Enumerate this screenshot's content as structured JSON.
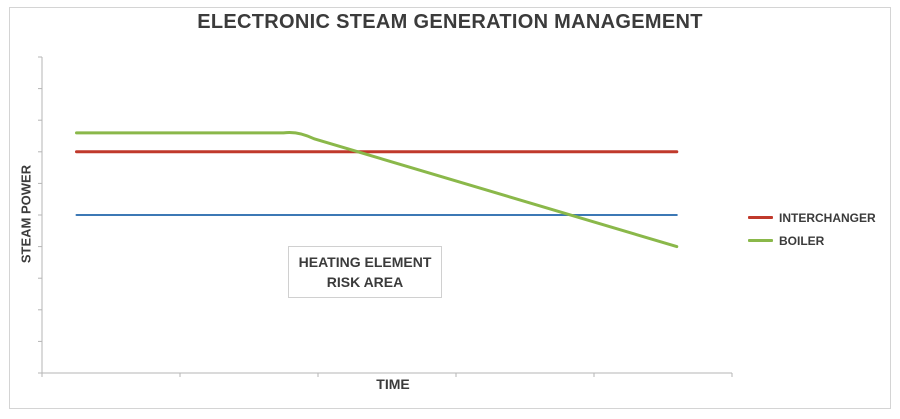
{
  "chart_data": {
    "type": "line",
    "title": "ELECTRONIC STEAM GENERATION MANAGEMENT",
    "xlabel": "TIME",
    "ylabel": "STEAM POWER",
    "xlim": [
      0,
      10
    ],
    "ylim": [
      0,
      10
    ],
    "grid": false,
    "legend_position": "right",
    "series": [
      {
        "name": "INTERCHANGER",
        "color": "#c0392b",
        "x": [
          0.5,
          9.2
        ],
        "y": [
          7.0,
          7.0
        ]
      },
      {
        "name": "BOILER",
        "color": "#8ab84a",
        "x": [
          0.5,
          3.5,
          3.8,
          9.2
        ],
        "y": [
          7.6,
          7.6,
          7.6,
          4.0
        ]
      },
      {
        "color": "#3c78b5",
        "x": [
          0.5,
          9.2
        ],
        "y": [
          5.0,
          5.0
        ]
      }
    ],
    "annotations": [
      {
        "lines": [
          "HEATING ELEMENT",
          "RISK AREA"
        ]
      }
    ]
  }
}
